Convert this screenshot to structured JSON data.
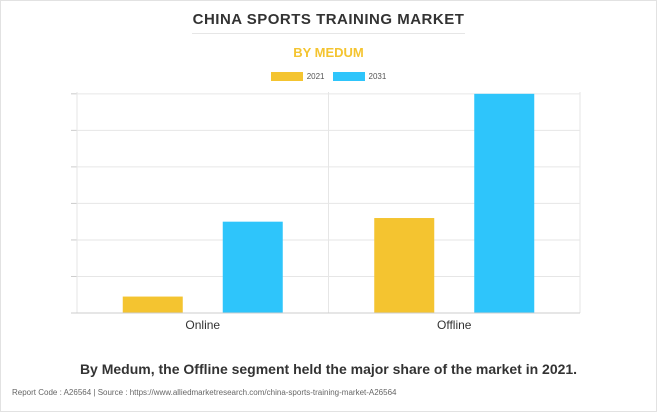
{
  "chart_data": {
    "type": "bar",
    "title": "CHINA SPORTS TRAINING MARKET",
    "subtitle": "BY MEDUM",
    "categories": [
      "Online",
      "Offline"
    ],
    "series": [
      {
        "name": "2021",
        "values": [
          0.45,
          2.6
        ],
        "color": "#f4c430"
      },
      {
        "name": "2031",
        "values": [
          2.5,
          6.0
        ],
        "color": "#2ec5fb"
      }
    ],
    "ylim": [
      0,
      6.05
    ],
    "y_ticks": [
      0,
      1,
      2,
      3,
      4,
      5,
      6
    ],
    "y_tick_labels_shown": false,
    "grid": true,
    "legend_position": "top-center",
    "xlabel": "",
    "ylabel": ""
  },
  "caption": "By Medum, the Offline segment held the major share of the market in 2021.",
  "footer": "Report Code : A26564  |  Source : https://www.alliedmarketresearch.com/china-sports-training-market-A26564",
  "colors": {
    "series_2021": "#f4c430",
    "series_2031": "#2ec5fb",
    "subtitle": "#f4c430",
    "grid": "#e6e6e6"
  }
}
